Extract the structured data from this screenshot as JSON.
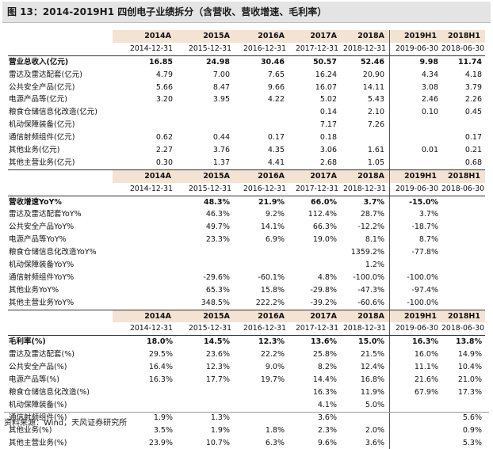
{
  "title": "图 13：2014-2019H1 四创电子业绩拆分（含营收、营收增速、毛利率）",
  "years": [
    "2014A",
    "2015A",
    "2016A",
    "2017A",
    "2018A",
    "2019H1",
    "2018H1"
  ],
  "dates": [
    "2014-12-31",
    "2015-12-31",
    "2016-12-31",
    "2017-12-31",
    "2018-12-31",
    "2019-06-30",
    "2018-06-30"
  ],
  "sections": [
    {
      "rows": [
        {
          "label": "营业总收入(亿元)",
          "bold": true,
          "values": [
            "16.85",
            "24.98",
            "30.46",
            "50.57",
            "52.46",
            "9.98",
            "11.74"
          ]
        },
        {
          "label": "雷达及雷达配套(亿元)",
          "values": [
            "4.79",
            "7.00",
            "7.65",
            "16.24",
            "20.90",
            "4.34",
            "4.18"
          ]
        },
        {
          "label": "公共安全产品(亿元)",
          "values": [
            "5.66",
            "8.47",
            "9.66",
            "16.07",
            "14.11",
            "3.08",
            "3.79"
          ]
        },
        {
          "label": "电源产品等(亿元)",
          "values": [
            "3.20",
            "3.95",
            "4.22",
            "5.02",
            "5.43",
            "2.46",
            "2.26"
          ]
        },
        {
          "label": "粮食仓储信息化改造(亿元)",
          "values": [
            "",
            "",
            "",
            "0.14",
            "2.10",
            "0.10",
            "0.45"
          ]
        },
        {
          "label": "机动保障装备(亿元)",
          "values": [
            "",
            "",
            "",
            "7.17",
            "7.26",
            "",
            ""
          ]
        },
        {
          "label": "通信射频组件(亿元)",
          "values": [
            "0.62",
            "0.44",
            "0.17",
            "0.18",
            "",
            "",
            "0.17"
          ]
        },
        {
          "label": "其他业务(亿元)",
          "values": [
            "2.27",
            "3.76",
            "4.35",
            "3.06",
            "1.61",
            "0.01",
            "0.21"
          ]
        },
        {
          "label": "其他主营业务(亿元)",
          "values": [
            "0.30",
            "1.37",
            "4.41",
            "2.68",
            "1.05",
            "",
            "0.68"
          ]
        }
      ]
    },
    {
      "rows": [
        {
          "label": "营收增速YoY%",
          "bold": true,
          "values": [
            "",
            "48.3%",
            "21.9%",
            "66.0%",
            "3.7%",
            "-15.0%",
            ""
          ]
        },
        {
          "label": "雷达及雷达配套YoY%",
          "values": [
            "",
            "46.3%",
            "9.2%",
            "112.4%",
            "28.7%",
            "3.7%",
            ""
          ]
        },
        {
          "label": "公共安全产品YoY%",
          "values": [
            "",
            "49.7%",
            "14.1%",
            "66.3%",
            "-12.2%",
            "-18.7%",
            ""
          ]
        },
        {
          "label": "电源产品等YoY%",
          "values": [
            "",
            "23.3%",
            "6.9%",
            "19.0%",
            "8.1%",
            "8.7%",
            ""
          ]
        },
        {
          "label": "粮食仓储信息化改造YoY%",
          "values": [
            "",
            "",
            "",
            "",
            "1359.2%",
            "-77.8%",
            ""
          ]
        },
        {
          "label": "机动保障装备YoY%",
          "values": [
            "",
            "",
            "",
            "",
            "1.2%",
            "",
            ""
          ]
        },
        {
          "label": "通信射频组件YoY%",
          "values": [
            "",
            "-29.6%",
            "-60.1%",
            "4.8%",
            "-100.0%",
            "-100.0%",
            ""
          ]
        },
        {
          "label": "其他业务YoY%",
          "values": [
            "",
            "65.3%",
            "15.8%",
            "-29.8%",
            "-47.3%",
            "-97.4%",
            ""
          ]
        },
        {
          "label": "其他主营业务YoY%",
          "values": [
            "",
            "348.5%",
            "222.2%",
            "-39.2%",
            "-60.6%",
            "-100.0%",
            ""
          ]
        }
      ]
    },
    {
      "rows": [
        {
          "label": "毛利率(%)",
          "bold": true,
          "values": [
            "18.0%",
            "14.5%",
            "12.3%",
            "13.6%",
            "15.0%",
            "16.3%",
            "13.8%"
          ]
        },
        {
          "label": "雷达及雷达配套(%)",
          "values": [
            "29.5%",
            "23.6%",
            "22.2%",
            "25.8%",
            "21.5%",
            "16.0%",
            "14.9%"
          ]
        },
        {
          "label": "公共安全产品(%)",
          "values": [
            "16.4%",
            "12.3%",
            "9.0%",
            "8.2%",
            "12.4%",
            "11.1%",
            "10.4%"
          ]
        },
        {
          "label": "电源产品等(%)",
          "values": [
            "16.3%",
            "17.7%",
            "19.7%",
            "14.4%",
            "16.8%",
            "21.6%",
            "21.0%"
          ]
        },
        {
          "label": "粮食仓储信息化改造(%)",
          "values": [
            "",
            "",
            "",
            "16.3%",
            "11.9%",
            "67.9%",
            "17.3%"
          ]
        },
        {
          "label": "机动保障装备(%)",
          "values": [
            "",
            "",
            "",
            "4.1%",
            "5.0%",
            "",
            ""
          ]
        },
        {
          "label": "通信射频组件(%)",
          "values": [
            "1.9%",
            "1.3%",
            "",
            "3.6%",
            "",
            "",
            "5.6%"
          ]
        },
        {
          "label": "其他业务(%)",
          "values": [
            "3.5%",
            "1.9%",
            "1.8%",
            "2.3%",
            "2.0%",
            "",
            "0.9%"
          ]
        },
        {
          "label": "其他主营业务(%)",
          "values": [
            "23.9%",
            "10.7%",
            "6.3%",
            "9.6%",
            "3.6%",
            "",
            "5.3%"
          ]
        }
      ]
    }
  ],
  "source": "资料来源：Wind，天风证券研究所"
}
